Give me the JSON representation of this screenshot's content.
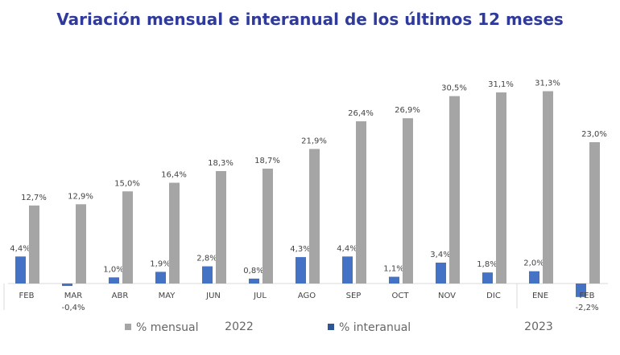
{
  "chart_data": {
    "type": "bar",
    "title": "Variación mensual e interanual de los últimos 12 meses",
    "categories": [
      "FEB",
      "MAR",
      "ABR",
      "MAY",
      "JUN",
      "JUL",
      "AGO",
      "SEP",
      "OCT",
      "NOV",
      "DIC",
      "ENE",
      "FEB"
    ],
    "year_groups": [
      {
        "label": "2022",
        "categories": [
          "FEB",
          "MAR",
          "ABR",
          "MAY",
          "JUN",
          "JUL",
          "AGO",
          "SEP",
          "OCT",
          "NOV",
          "DIC"
        ]
      },
      {
        "label": "2023",
        "categories": [
          "ENE",
          "FEB"
        ]
      }
    ],
    "series": [
      {
        "name": "% interanual",
        "color": "#4472c4",
        "legend_color": "#2f5597",
        "values": [
          4.4,
          -0.4,
          1.0,
          1.9,
          2.8,
          0.8,
          4.3,
          4.4,
          1.1,
          3.4,
          1.8,
          2.0,
          -2.2
        ],
        "labels": [
          "4,4%",
          "-0,4%",
          "1,0%",
          "1,9%",
          "2,8%",
          "0,8%",
          "4,3%",
          "4,4%",
          "1,1%",
          "3,4%",
          "1,8%",
          "2,0%",
          "-2,2%"
        ]
      },
      {
        "name": "% mensual",
        "color": "#a5a5a5",
        "values": [
          12.7,
          12.9,
          15.0,
          16.4,
          18.3,
          18.7,
          21.9,
          26.4,
          26.9,
          30.5,
          31.1,
          31.3,
          23.0
        ],
        "labels": [
          "12,7%",
          "12,9%",
          "15,0%",
          "16,4%",
          "18,3%",
          "18,7%",
          "21,9%",
          "26,4%",
          "26,9%",
          "30,5%",
          "31,1%",
          "31,3%",
          "23,0%"
        ]
      }
    ],
    "legend": [
      "% mensual",
      "% interanual"
    ],
    "legend_position": "bottom",
    "grid": false
  }
}
